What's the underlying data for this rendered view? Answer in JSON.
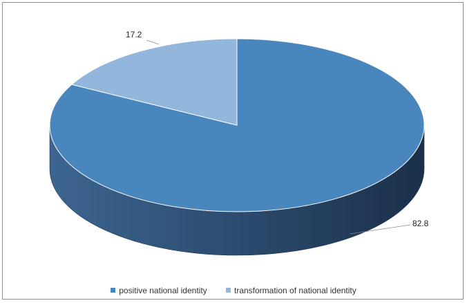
{
  "chart_data": {
    "type": "pie",
    "title": "",
    "series": [
      {
        "name": "positive national identity",
        "value": 82.8,
        "label": "82.8",
        "color": "#4a86be"
      },
      {
        "name": "transformation of national identity",
        "value": 17.2,
        "label": "17.2",
        "color": "#93b6dc"
      }
    ],
    "legend_position": "bottom",
    "style": "3d-pie"
  }
}
